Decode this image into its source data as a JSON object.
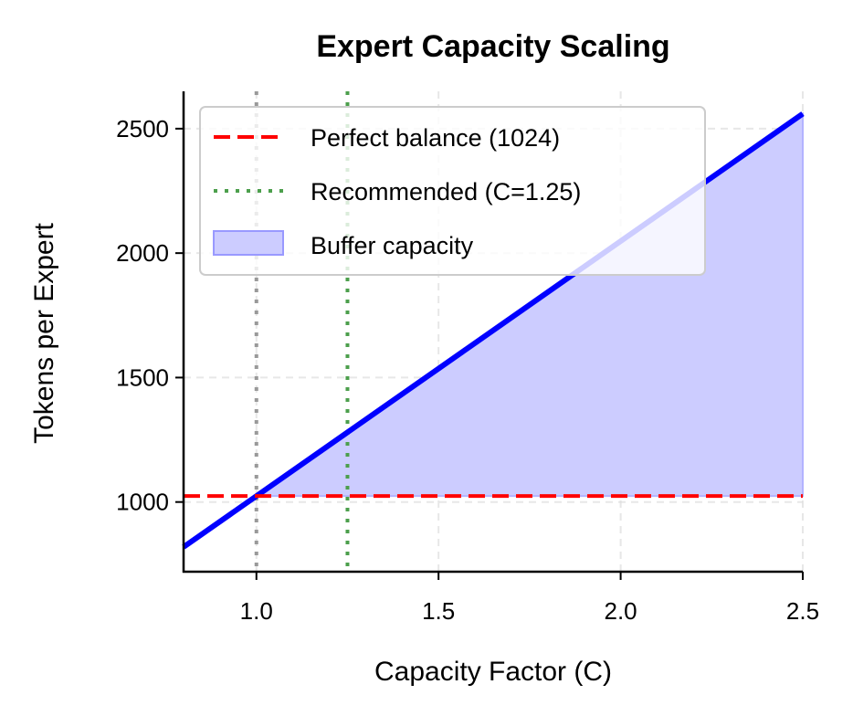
{
  "chart_data": {
    "type": "line",
    "title": "Expert Capacity Scaling",
    "xlabel": "Capacity Factor (C)",
    "ylabel": "Tokens per Expert",
    "xlim": [
      0.8,
      2.5
    ],
    "ylim": [
      720,
      2650
    ],
    "xticks": [
      1.0,
      1.5,
      2.0,
      2.5
    ],
    "xtick_labels": [
      "1.0",
      "1.5",
      "2.0",
      "2.5"
    ],
    "yticks": [
      1000,
      1500,
      2000,
      2500
    ],
    "ytick_labels": [
      "1000",
      "1500",
      "2000",
      "2500"
    ],
    "grid": true,
    "legend_position": "top-left",
    "series": [
      {
        "kind": "line",
        "x": [
          0.8,
          2.5
        ],
        "y": [
          819.2,
          2560
        ],
        "color": "#0000ff"
      },
      {
        "name": "Perfect balance (1024)",
        "kind": "hline",
        "y": 1024,
        "style": "dashed",
        "color": "#ff0000"
      },
      {
        "name": "Recommended (C=1.25)",
        "kind": "vline",
        "x": 1.25,
        "style": "dotted",
        "color": "#4c9f4c"
      },
      {
        "kind": "vline",
        "x": 1.0,
        "style": "dotted",
        "color": "#999999"
      },
      {
        "name": "Buffer capacity",
        "kind": "fill_between",
        "x": [
          1.0,
          2.5
        ],
        "y_lower": 1024,
        "y_upper": [
          1024,
          2560
        ],
        "color": "#ccccff"
      }
    ]
  }
}
